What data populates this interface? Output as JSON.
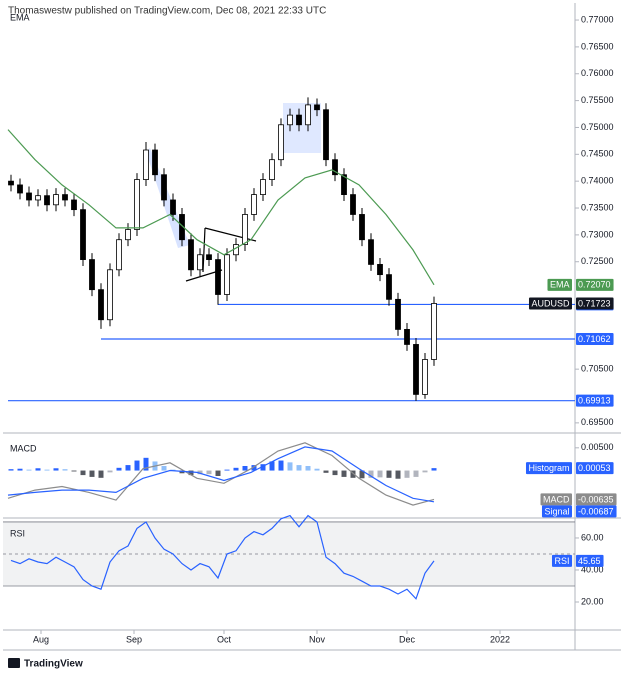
{
  "header": {
    "title": "Thomaswestw published on TradingView.com, Dec 08, 2021 22:33 UTC"
  },
  "footer": {
    "brand": "TradingView"
  },
  "chart_data": [
    {
      "type": "candlestick",
      "indicator": "EMA",
      "symbol": "AUDUSD",
      "x": [
        -10,
        -7,
        -4,
        -1,
        2,
        5,
        8,
        11,
        14,
        17,
        20,
        23,
        26,
        29,
        32,
        35,
        38,
        41,
        44,
        47,
        50,
        53,
        56,
        59,
        62,
        65,
        68,
        71,
        74,
        77,
        80,
        83,
        86,
        89,
        92,
        95,
        98,
        101,
        104,
        107,
        110,
        113,
        116,
        119,
        122,
        125,
        128,
        131
      ],
      "open": [
        0.74,
        0.7393,
        0.7378,
        0.7365,
        0.7373,
        0.7356,
        0.7375,
        0.7365,
        0.7347,
        0.7254,
        0.7198,
        0.7142,
        0.7235,
        0.7291,
        0.731,
        0.7403,
        0.7458,
        0.7412,
        0.7365,
        0.7338,
        0.7291,
        0.7235,
        0.7263,
        0.7254,
        0.7189,
        0.7263,
        0.7282,
        0.7338,
        0.7375,
        0.7403,
        0.744,
        0.7505,
        0.7523,
        0.7505,
        0.7542,
        0.7533,
        0.744,
        0.7412,
        0.7375,
        0.7338,
        0.7291,
        0.7245,
        0.7226,
        0.718,
        0.7124,
        0.7096,
        0.7003,
        0.7068
      ],
      "high": [
        0.7412,
        0.7405,
        0.739,
        0.7385,
        0.7385,
        0.7387,
        0.7387,
        0.7377,
        0.7359,
        0.7266,
        0.721,
        0.7247,
        0.7303,
        0.7322,
        0.7415,
        0.7473,
        0.747,
        0.7424,
        0.7377,
        0.735,
        0.7303,
        0.7275,
        0.7275,
        0.7266,
        0.7275,
        0.7294,
        0.735,
        0.7387,
        0.7415,
        0.7452,
        0.7517,
        0.7535,
        0.7535,
        0.7556,
        0.7554,
        0.7545,
        0.7452,
        0.7424,
        0.7387,
        0.735,
        0.7303,
        0.7257,
        0.7238,
        0.7192,
        0.7136,
        0.7108,
        0.708,
        0.7185
      ],
      "low": [
        0.7381,
        0.7366,
        0.7353,
        0.7353,
        0.7344,
        0.7344,
        0.7353,
        0.7335,
        0.7242,
        0.7186,
        0.7125,
        0.713,
        0.7223,
        0.7279,
        0.7298,
        0.7391,
        0.74,
        0.7353,
        0.7326,
        0.7279,
        0.7223,
        0.7223,
        0.7242,
        0.717,
        0.7177,
        0.7251,
        0.727,
        0.7326,
        0.7363,
        0.7391,
        0.7428,
        0.7493,
        0.7493,
        0.7493,
        0.7521,
        0.7428,
        0.74,
        0.7363,
        0.7326,
        0.7279,
        0.7233,
        0.7214,
        0.7168,
        0.7112,
        0.7084,
        0.6991,
        0.6995,
        0.7056
      ],
      "close": [
        0.7393,
        0.7378,
        0.7365,
        0.7373,
        0.7356,
        0.7375,
        0.7365,
        0.7347,
        0.7254,
        0.7198,
        0.7142,
        0.7235,
        0.7291,
        0.731,
        0.7403,
        0.7458,
        0.7412,
        0.7365,
        0.7338,
        0.7291,
        0.7235,
        0.7263,
        0.7254,
        0.7189,
        0.7263,
        0.7282,
        0.7338,
        0.7375,
        0.7403,
        0.744,
        0.7505,
        0.7523,
        0.7505,
        0.7542,
        0.7533,
        0.744,
        0.7412,
        0.7375,
        0.7338,
        0.7291,
        0.7245,
        0.7226,
        0.718,
        0.7124,
        0.7096,
        0.7003,
        0.7068,
        0.71723
      ],
      "ema": {
        "name": "EMA",
        "color": "#4c9a52",
        "x": [
          -11,
          -2,
          7,
          16,
          25,
          34,
          43,
          52,
          61,
          70,
          79,
          88,
          97,
          106,
          115,
          124,
          131
        ],
        "values": [
          0.7496,
          0.744,
          0.7393,
          0.7356,
          0.7313,
          0.7313,
          0.7338,
          0.7291,
          0.7263,
          0.7291,
          0.7365,
          0.7406,
          0.7421,
          0.7393,
          0.7338,
          0.7272,
          0.7207
        ],
        "last_label": {
          "value": 0.7207,
          "label": "0.72070"
        }
      },
      "levels": [
        {
          "value": 0.71705,
          "from": 59
        },
        {
          "value": 0.71062,
          "from": 20
        },
        {
          "value": 0.69913,
          "from": -11
        }
      ],
      "level_color": "#2962ff",
      "xlim": [
        -11,
        178
      ],
      "ylim": [
        0.6933,
        0.7728
      ],
      "yticks": [
        {
          "value": 0.77,
          "label": "0.77000"
        },
        {
          "value": 0.765,
          "label": "0.76500"
        },
        {
          "value": 0.76,
          "label": "0.76000"
        },
        {
          "value": 0.755,
          "label": "0.75500"
        },
        {
          "value": 0.75,
          "label": "0.75000"
        },
        {
          "value": 0.745,
          "label": "0.74500"
        },
        {
          "value": 0.74,
          "label": "0.74000"
        },
        {
          "value": 0.735,
          "label": "0.73500"
        },
        {
          "value": 0.73,
          "label": "0.73000"
        },
        {
          "value": 0.725,
          "label": "0.72500"
        },
        {
          "value": 0.705,
          "label": "0.70500"
        },
        {
          "value": 0.695,
          "label": "0.69500"
        }
      ]
    },
    {
      "type": "macd",
      "indicator": "MACD",
      "xlim": [
        -11,
        178
      ],
      "ylim": [
        -0.01,
        0.0076
      ],
      "yticks": [
        {
          "value": 0.005,
          "label": "0.00500"
        }
      ],
      "series": [
        {
          "name": "Histogram",
          "type": "bar",
          "color": "#2962ff",
          "x": [
            -10,
            -7,
            -4,
            -1,
            2,
            5,
            8,
            11,
            14,
            17,
            20,
            23,
            26,
            29,
            32,
            35,
            38,
            41,
            44,
            47,
            50,
            53,
            56,
            59,
            62,
            65,
            68,
            71,
            74,
            77,
            80,
            83,
            86,
            89,
            92,
            95,
            98,
            101,
            104,
            107,
            110,
            113,
            116,
            119,
            122,
            125,
            128,
            131
          ],
          "values": [
            0.0003,
            0.0004,
            0.0002,
            0.0005,
            0.0002,
            0.0005,
            0.0003,
            -0.0002,
            -0.001,
            -0.0014,
            -0.0016,
            -0.0004,
            0.0006,
            0.0012,
            0.0022,
            0.0028,
            0.002,
            0.001,
            0.0002,
            -0.0006,
            -0.001,
            -0.0008,
            -0.0008,
            -0.0012,
            0.0002,
            0.0006,
            0.001,
            0.0012,
            0.0014,
            0.002,
            0.0022,
            0.0018,
            0.0012,
            0.001,
            0.0004,
            -0.0005,
            -0.001,
            -0.0014,
            -0.0016,
            -0.0017,
            -0.0016,
            -0.0015,
            -0.0016,
            -0.0018,
            -0.0016,
            -0.0014,
            -0.0004,
            0.00053
          ]
        },
        {
          "name": "MACD",
          "type": "line",
          "color": "#8c8c8c",
          "x": [
            -11,
            -2,
            7,
            16,
            25,
            34,
            43,
            52,
            61,
            70,
            79,
            88,
            97,
            106,
            115,
            124,
            131
          ],
          "values": [
            -0.0061,
            -0.0043,
            -0.0035,
            -0.0048,
            -0.0065,
            0.0004,
            0.0017,
            -0.0017,
            -0.0028,
            0.0004,
            0.0043,
            0.0061,
            0.0033,
            -0.0017,
            -0.0054,
            -0.0076,
            -0.00635
          ]
        },
        {
          "name": "Signal",
          "type": "line",
          "color": "#2962ff",
          "x": [
            -11,
            -2,
            7,
            16,
            25,
            34,
            43,
            52,
            61,
            70,
            79,
            88,
            97,
            106,
            115,
            124,
            131
          ],
          "values": [
            -0.0054,
            -0.0048,
            -0.0043,
            -0.0043,
            -0.0048,
            -0.0017,
            0,
            -0.0004,
            -0.0022,
            -0.0004,
            0.0026,
            0.0052,
            0.0043,
            0.0004,
            -0.0033,
            -0.0061,
            -0.00687
          ]
        }
      ]
    },
    {
      "type": "line",
      "indicator": "RSI",
      "xlim": [
        -11,
        178
      ],
      "ylim": [
        3.75,
        70.6
      ],
      "yticks": [
        {
          "value": 60,
          "label": "60.00"
        },
        {
          "value": 40,
          "label": "40.00"
        },
        {
          "value": 20,
          "label": "20.00"
        }
      ],
      "band": [
        30,
        70
      ],
      "midline": 50,
      "xticks": [
        {
          "value": 0,
          "label": "Aug"
        },
        {
          "value": 31,
          "label": "Sep"
        },
        {
          "value": 61,
          "label": "Oct"
        },
        {
          "value": 92,
          "label": "Nov"
        },
        {
          "value": 122,
          "label": "Dec"
        },
        {
          "value": 153,
          "label": "2022"
        }
      ],
      "series": [
        {
          "name": "RSI",
          "color": "#2962ff",
          "x": [
            -10,
            -7,
            -4,
            -1,
            2,
            5,
            8,
            11,
            14,
            17,
            20,
            23,
            26,
            29,
            32,
            35,
            38,
            41,
            44,
            47,
            50,
            53,
            56,
            59,
            62,
            65,
            68,
            71,
            74,
            77,
            80,
            83,
            86,
            89,
            92,
            95,
            98,
            101,
            104,
            107,
            110,
            113,
            116,
            119,
            122,
            125,
            128,
            131
          ],
          "values": [
            46,
            44,
            47,
            45,
            44,
            48,
            45,
            42,
            34,
            30,
            28,
            45,
            52,
            55,
            66,
            70,
            60,
            53,
            50,
            44,
            40,
            44,
            42,
            35,
            50,
            52,
            60,
            64,
            62,
            66,
            72,
            74,
            67,
            74,
            70,
            48,
            44,
            38,
            36,
            33,
            30,
            30,
            28,
            25,
            28,
            22,
            38,
            45.65
          ]
        }
      ]
    }
  ]
}
